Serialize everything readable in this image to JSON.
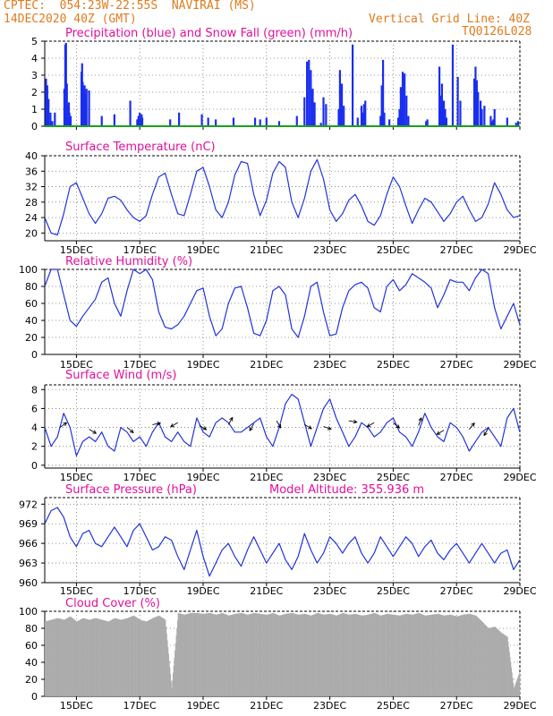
{
  "header": {
    "line1": "CPTEC:  054:23W-22:55S  NAVIRAI (MS)",
    "line2": "14DEC2020 40Z (GMT)",
    "grid_note": "Vertical Grid Line: 40Z",
    "code": "TQ0126L028",
    "altitude": "Model Altitude: 355.936 m"
  },
  "colors": {
    "header_orange": "#e07b1e",
    "title_magenta": "#e0109c",
    "line_blue": "#2233dd",
    "precip_blue": "#1a2ef0",
    "snow_green": "#1aa01a",
    "cloud_gray": "#aaaaaa"
  },
  "chart_data": [
    {
      "type": "bar",
      "title": "Precipitation (blue) and Snow Fall (green) (mm/h)",
      "x_ticks": [
        "15DEC",
        "17DEC",
        "19DEC",
        "21DEC",
        "23DEC",
        "25DEC",
        "27DEC",
        "29DEC"
      ],
      "x_tick_labels_shown": false,
      "ylim": [
        0,
        5
      ],
      "y_ticks": [
        0,
        1,
        2,
        3,
        4,
        5
      ],
      "grid": true,
      "x": [
        0.1,
        0.2,
        0.3,
        0.45,
        0.6,
        0.8,
        1.55,
        1.62,
        1.68,
        1.75,
        1.8,
        1.85,
        1.9,
        1.95,
        2.0,
        2.05,
        2.9,
        2.95,
        3.0,
        3.05,
        3.1,
        3.15,
        3.2,
        3.25,
        3.3,
        3.5,
        4.5,
        5.5,
        6.75,
        7.3,
        7.4,
        7.5,
        7.6,
        7.65,
        7.7,
        9.9,
        10.6,
        12.4,
        12.9,
        13.5,
        14.9,
        16.6,
        17.0,
        17.5,
        18.5,
        19.9,
        20.5,
        20.7,
        20.85,
        21.0,
        21.15,
        21.3,
        21.8,
        22.0,
        22.2,
        23.2,
        23.3,
        23.45,
        23.6,
        24.3,
        24.7,
        25.0,
        25.1,
        25.2,
        25.3,
        26.5,
        26.6,
        26.7,
        26.8,
        27.2,
        27.9,
        28.0,
        28.1,
        28.25,
        28.4,
        28.55,
        28.7,
        30.1,
        30.2,
        31.15,
        31.25,
        31.35,
        31.4,
        31.5,
        31.6,
        31.7,
        32.2,
        32.6,
        32.8,
        33.9,
        34.0,
        34.1,
        34.2,
        34.4,
        34.5,
        34.7,
        35.2,
        35.3,
        35.4,
        35.5,
        36.5,
        37.2,
        37.35
      ],
      "series": [
        {
          "name": "Precipitation",
          "values": [
            2.8,
            2.4,
            1.6,
            0.8,
            0.3,
            0.8,
            2.2,
            4.8,
            4.9,
            2.5,
            1.2,
            0.7,
            1.4,
            0.8,
            0.3,
            0.6,
            3.2,
            3.7,
            2.6,
            2.0,
            1.6,
            2.4,
            1.9,
            1.4,
            2.2,
            2.1,
            0.6,
            0.7,
            1.5,
            0.4,
            0.6,
            0.8,
            0.4,
            0.7,
            0.5,
            0.4,
            0.8,
            0.7,
            0.5,
            0.4,
            0.5,
            0.5,
            0.4,
            0.5,
            0.3,
            0.6,
            1.7,
            3.8,
            3.9,
            3.3,
            2.2,
            1.4,
            0.2,
            1.7,
            1.3,
            1.0,
            3.3,
            2.5,
            1.2,
            4.8,
            0.5,
            1.2,
            0.8,
            1.3,
            1.5,
            0.6,
            2.4,
            3.9,
            0.8,
            0.4,
            0.5,
            1.0,
            2.3,
            3.2,
            3.1,
            1.8,
            0.6,
            0.3,
            0.4,
            3.5,
            1.8,
            2.5,
            1.4,
            1.5,
            1.0,
            0.5,
            4.8,
            2.9,
            1.5,
            2.8,
            3.5,
            2.7,
            2.0,
            1.5,
            1.0,
            1.2,
            0.6,
            0.3,
            0.4,
            1.0,
            0.5,
            0.2,
            0.3
          ]
        },
        {
          "name": "Snow Fall",
          "values": [
            0,
            0,
            0,
            0,
            0,
            0,
            0,
            0,
            0,
            0,
            0,
            0,
            0,
            0,
            0,
            0,
            0,
            0,
            0,
            0,
            0,
            0,
            0,
            0,
            0,
            0,
            0,
            0,
            0,
            0,
            0,
            0,
            0,
            0,
            0,
            0,
            0,
            0,
            0,
            0,
            0,
            0,
            0,
            0,
            0,
            0,
            0,
            0,
            0,
            0,
            0,
            0,
            0,
            0,
            0,
            0,
            0,
            0,
            0,
            0,
            0,
            0,
            0,
            0,
            0,
            0,
            0,
            0,
            0,
            0,
            0,
            0,
            0,
            0,
            0,
            0,
            0,
            0,
            0,
            0,
            0,
            0,
            0,
            0,
            0,
            0,
            0,
            0,
            0,
            0,
            0,
            0,
            0,
            0,
            0,
            0,
            0,
            0,
            0,
            0,
            0,
            0,
            0
          ]
        }
      ]
    },
    {
      "type": "line",
      "title": "Surface Temperature (nC)",
      "x_ticks": [
        "15DEC",
        "17DEC",
        "19DEC",
        "21DEC",
        "23DEC",
        "25DEC",
        "27DEC",
        "29DEC"
      ],
      "ylim": [
        18,
        40
      ],
      "y_ticks": [
        20,
        24,
        28,
        32,
        36,
        40
      ],
      "grid": true,
      "x": [
        0,
        0.5,
        1,
        1.5,
        2,
        2.5,
        3,
        3.5,
        4,
        4.5,
        5,
        5.5,
        6,
        6.5,
        7,
        7.5,
        8,
        8.5,
        9,
        9.5,
        10,
        10.5,
        11,
        11.5,
        12,
        12.5,
        13,
        13.5,
        14,
        14.5,
        15,
        15.5,
        16,
        16.5,
        17,
        17.5,
        18,
        18.5,
        19,
        19.5,
        20,
        20.5,
        21,
        21.5,
        22,
        22.5,
        23,
        23.5,
        24,
        24.5,
        25,
        25.5,
        26,
        26.5,
        27,
        27.5,
        28,
        28.5,
        29,
        29.5,
        30,
        30.5,
        31,
        31.5,
        32,
        32.5,
        33,
        33.5,
        34,
        34.5,
        35,
        35.5,
        36,
        36.5,
        37,
        37.5
      ],
      "series": [
        {
          "name": "Temperature",
          "values": [
            24,
            20,
            19.5,
            25,
            32,
            33,
            29,
            25,
            22.5,
            25,
            29,
            29.5,
            28.5,
            26,
            24,
            23,
            24.5,
            30,
            34.5,
            35.5,
            30,
            25,
            24.5,
            30,
            36,
            37,
            32,
            26,
            24,
            28,
            35,
            38.5,
            38,
            30,
            24.5,
            28.5,
            35.5,
            38.5,
            37,
            28,
            24,
            29,
            36,
            39,
            34,
            26,
            23,
            25,
            28.5,
            30,
            27,
            23,
            22,
            24.5,
            30,
            34.5,
            32,
            27,
            22.5,
            26,
            29,
            28,
            25.5,
            23,
            25,
            28,
            29.5,
            26,
            23,
            24,
            27.5,
            33,
            30,
            26,
            24,
            24.5
          ]
        }
      ]
    },
    {
      "type": "line",
      "title": "Relative Humidity (%)",
      "x_ticks": [
        "15DEC",
        "17DEC",
        "19DEC",
        "21DEC",
        "23DEC",
        "25DEC",
        "27DEC",
        "29DEC"
      ],
      "ylim": [
        0,
        100
      ],
      "y_ticks": [
        0,
        20,
        40,
        60,
        80,
        100
      ],
      "grid": true,
      "x": [
        0,
        0.5,
        1,
        1.5,
        2,
        2.5,
        3,
        3.5,
        4,
        4.5,
        5,
        5.5,
        6,
        6.5,
        7,
        7.5,
        8,
        8.5,
        9,
        9.5,
        10,
        10.5,
        11,
        11.5,
        12,
        12.5,
        13,
        13.5,
        14,
        14.5,
        15,
        15.5,
        16,
        16.5,
        17,
        17.5,
        18,
        18.5,
        19,
        19.5,
        20,
        20.5,
        21,
        21.5,
        22,
        22.5,
        23,
        23.5,
        24,
        24.5,
        25,
        25.5,
        26,
        26.5,
        27,
        27.5,
        28,
        28.5,
        29,
        29.5,
        30,
        30.5,
        31,
        31.5,
        32,
        32.5,
        33,
        33.5,
        34,
        34.5,
        35,
        35.5,
        36,
        36.5,
        37,
        37.5
      ],
      "series": [
        {
          "name": "Humidity",
          "values": [
            80,
            100,
            100,
            70,
            40,
            33,
            45,
            55,
            65,
            85,
            90,
            60,
            45,
            75,
            100,
            95,
            100,
            88,
            50,
            32,
            30,
            35,
            45,
            60,
            75,
            78,
            45,
            22,
            30,
            60,
            78,
            80,
            55,
            25,
            22,
            40,
            75,
            80,
            70,
            30,
            20,
            45,
            80,
            85,
            50,
            22,
            24,
            55,
            75,
            82,
            85,
            78,
            55,
            50,
            80,
            88,
            75,
            82,
            95,
            90,
            85,
            78,
            55,
            70,
            88,
            85,
            85,
            75,
            90,
            100,
            95,
            55,
            30,
            45,
            60,
            35
          ]
        }
      ]
    },
    {
      "type": "line",
      "title": "Surface Wind (m/s)",
      "x_ticks": [
        "15DEC",
        "17DEC",
        "19DEC",
        "21DEC",
        "23DEC",
        "25DEC",
        "27DEC",
        "29DEC"
      ],
      "ylim": [
        -0.3,
        8.5
      ],
      "y_ticks": [
        0,
        2,
        4,
        6,
        8
      ],
      "grid": true,
      "x": [
        0,
        0.5,
        1,
        1.5,
        2,
        2.5,
        3,
        3.5,
        4,
        4.5,
        5,
        5.5,
        6,
        6.5,
        7,
        7.5,
        8,
        8.5,
        9,
        9.5,
        10,
        10.5,
        11,
        11.5,
        12,
        12.5,
        13,
        13.5,
        14,
        14.5,
        15,
        15.5,
        16,
        16.5,
        17,
        17.5,
        18,
        18.5,
        19,
        19.5,
        20,
        20.5,
        21,
        21.5,
        22,
        22.5,
        23,
        23.5,
        24,
        24.5,
        25,
        25.5,
        26,
        26.5,
        27,
        27.5,
        28,
        28.5,
        29,
        29.5,
        30,
        30.5,
        31,
        31.5,
        32,
        32.5,
        33,
        33.5,
        34,
        34.5,
        35,
        35.5,
        36,
        36.5,
        37,
        37.5
      ],
      "series": [
        {
          "name": "Wind speed",
          "values": [
            4,
            2,
            3,
            5.5,
            4,
            1,
            2.5,
            3,
            2.5,
            3.5,
            2,
            1.5,
            4,
            3.5,
            2.5,
            3,
            2,
            3.5,
            4.5,
            3,
            2.5,
            3.5,
            2.5,
            2,
            5,
            3.5,
            3,
            4.5,
            5,
            4.5,
            3.5,
            3.5,
            4,
            4.5,
            5,
            3,
            2,
            4,
            6.5,
            7.5,
            7,
            4.5,
            2,
            4,
            6,
            7,
            5,
            3.5,
            2,
            3,
            4.5,
            4,
            3,
            3.5,
            4.5,
            5,
            3.5,
            3,
            2,
            3.5,
            5.5,
            4,
            3,
            2.5,
            4.5,
            4,
            3,
            1.5,
            2.5,
            3.5,
            4,
            3,
            2,
            5,
            6,
            3.5
          ]
        }
      ]
    },
    {
      "type": "line",
      "title": "Surface Pressure (hPa)",
      "x_ticks": [
        "15DEC",
        "17DEC",
        "19DEC",
        "21DEC",
        "23DEC",
        "25DEC",
        "27DEC",
        "29DEC"
      ],
      "ylim": [
        960,
        973
      ],
      "y_ticks": [
        960,
        963,
        966,
        969,
        972
      ],
      "grid": true,
      "x": [
        0,
        0.5,
        1,
        1.5,
        2,
        2.5,
        3,
        3.5,
        4,
        4.5,
        5,
        5.5,
        6,
        6.5,
        7,
        7.5,
        8,
        8.5,
        9,
        9.5,
        10,
        10.5,
        11,
        11.5,
        12,
        12.5,
        13,
        13.5,
        14,
        14.5,
        15,
        15.5,
        16,
        16.5,
        17,
        17.5,
        18,
        18.5,
        19,
        19.5,
        20,
        20.5,
        21,
        21.5,
        22,
        22.5,
        23,
        23.5,
        24,
        24.5,
        25,
        25.5,
        26,
        26.5,
        27,
        27.5,
        28,
        28.5,
        29,
        29.5,
        30,
        30.5,
        31,
        31.5,
        32,
        32.5,
        33,
        33.5,
        34,
        34.5,
        35,
        35.5,
        36,
        36.5,
        37,
        37.5
      ],
      "series": [
        {
          "name": "Pressure",
          "values": [
            969,
            971,
            971.5,
            970,
            967,
            965.5,
            967.5,
            968,
            966,
            965.5,
            967,
            968.5,
            967,
            965.5,
            968,
            969,
            967,
            965,
            965.5,
            967,
            966.5,
            964,
            962,
            965,
            968,
            964,
            961,
            963,
            965,
            966,
            964,
            962.5,
            965,
            967,
            965,
            963,
            964.5,
            966,
            963.5,
            962,
            964,
            967.5,
            965,
            963,
            964.5,
            967,
            966,
            964.5,
            966,
            967,
            964.5,
            963,
            964.5,
            967,
            965.5,
            964,
            965.5,
            967,
            966,
            964,
            965.5,
            966.5,
            964.5,
            963.5,
            965,
            966,
            964.5,
            963,
            964.5,
            966,
            964.5,
            963,
            964.5,
            965,
            962,
            963.5
          ]
        }
      ]
    },
    {
      "type": "area",
      "title": "Cloud Cover (%)",
      "x_ticks": [
        "15DEC",
        "17DEC",
        "19DEC",
        "21DEC",
        "23DEC",
        "25DEC",
        "27DEC",
        "29DEC"
      ],
      "ylim": [
        0,
        100
      ],
      "y_ticks": [
        0,
        20,
        40,
        60,
        80,
        100
      ],
      "grid": true,
      "x": [
        0,
        0.5,
        1,
        1.5,
        2,
        2.5,
        3,
        3.5,
        4,
        4.5,
        5,
        5.5,
        6,
        6.5,
        7,
        7.5,
        8,
        8.5,
        9,
        9.5,
        10,
        10.5,
        11,
        11.5,
        12,
        12.5,
        13,
        13.5,
        14,
        14.5,
        15,
        15.5,
        16,
        16.5,
        17,
        17.5,
        18,
        18.5,
        19,
        19.5,
        20,
        20.5,
        21,
        21.5,
        22,
        22.5,
        23,
        23.5,
        24,
        24.5,
        25,
        25.5,
        26,
        26.5,
        27,
        27.5,
        28,
        28.5,
        29,
        29.5,
        30,
        30.5,
        31,
        31.5,
        32,
        32.5,
        33,
        33.5,
        34,
        34.5,
        35,
        35.5,
        36,
        36.5,
        37,
        37.5
      ],
      "series": [
        {
          "name": "Cloud cover",
          "values": [
            88,
            90,
            92,
            90,
            94,
            88,
            92,
            90,
            92,
            90,
            88,
            92,
            90,
            92,
            95,
            90,
            88,
            92,
            95,
            90,
            10,
            98,
            96,
            98,
            98,
            97,
            98,
            96,
            98,
            95,
            97,
            98,
            96,
            98,
            97,
            96,
            98,
            95,
            97,
            98,
            96,
            97,
            95,
            98,
            96,
            97,
            95,
            98,
            96,
            97,
            95,
            96,
            98,
            95,
            97,
            96,
            95,
            97,
            96,
            98,
            95,
            96,
            97,
            95,
            96,
            94,
            96,
            97,
            95,
            88,
            80,
            82,
            75,
            70,
            10,
            30
          ]
        }
      ]
    }
  ]
}
